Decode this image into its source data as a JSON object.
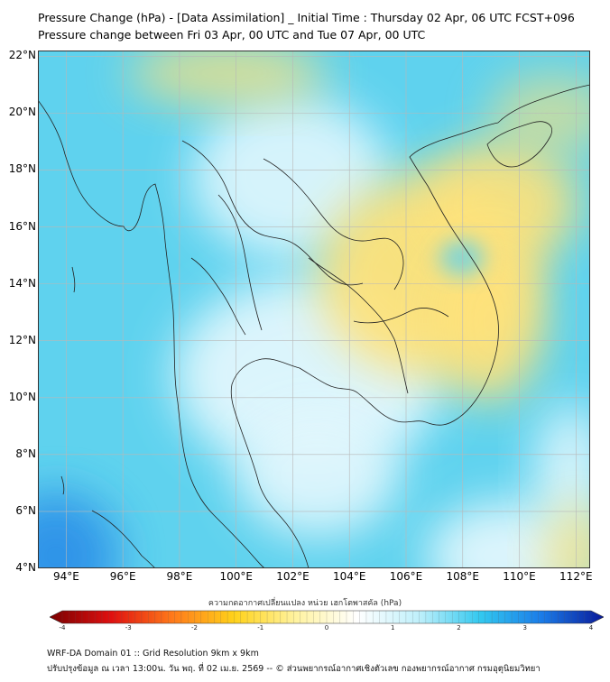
{
  "title_line1": "Pressure Change (hPa) - [Data Assimilation] _ Initial Time : Thursday 02 Apr, 06 UTC FCST+096",
  "title_line2": "Pressure change between Fri 03 Apr, 00 UTC and Tue 07 Apr, 00 UTC",
  "map": {
    "lon_range": [
      93,
      112.5
    ],
    "lat_range": [
      4,
      22.2
    ],
    "lat_ticks": [
      {
        "value": 22,
        "label": "22°N"
      },
      {
        "value": 20,
        "label": "20°N"
      },
      {
        "value": 18,
        "label": "18°N"
      },
      {
        "value": 16,
        "label": "16°N"
      },
      {
        "value": 14,
        "label": "14°N"
      },
      {
        "value": 12,
        "label": "12°N"
      },
      {
        "value": 10,
        "label": "10°N"
      },
      {
        "value": 8,
        "label": "8°N"
      },
      {
        "value": 6,
        "label": "6°N"
      },
      {
        "value": 4,
        "label": "4°N"
      }
    ],
    "lon_ticks": [
      {
        "value": 94,
        "label": "94°E"
      },
      {
        "value": 96,
        "label": "96°E"
      },
      {
        "value": 98,
        "label": "98°E"
      },
      {
        "value": 100,
        "label": "100°E"
      },
      {
        "value": 102,
        "label": "102°E"
      },
      {
        "value": 104,
        "label": "104°E"
      },
      {
        "value": 106,
        "label": "106°E"
      },
      {
        "value": 108,
        "label": "108°E"
      },
      {
        "value": 110,
        "label": "110°E"
      },
      {
        "value": 112,
        "label": "112°E"
      }
    ],
    "grid": true,
    "colors": {
      "background_field": "#5fd2ee",
      "positive_strong": "#2a8ee8",
      "neutral": "#e2f7fd",
      "negative_weak": "#ffe27a",
      "gridline": "#b8b8b8",
      "border": "#222222"
    }
  },
  "colorbar": {
    "title": "ความกดอากาศเปลี่ยนแปลง หน่วย เฮกโตพาสคัล (hPa)",
    "min": -4,
    "max": 4,
    "ticks": [
      {
        "value": -4,
        "label": "-4"
      },
      {
        "value": -3,
        "label": "-3"
      },
      {
        "value": -2,
        "label": "-2"
      },
      {
        "value": -1,
        "label": "-1"
      },
      {
        "value": 0,
        "label": "0"
      },
      {
        "value": 1,
        "label": "1"
      },
      {
        "value": 2,
        "label": "2"
      },
      {
        "value": 3,
        "label": "3"
      },
      {
        "value": 4,
        "label": "4"
      }
    ],
    "stops": [
      "#7a0000",
      "#e01010",
      "#ff7a1a",
      "#ffd21a",
      "#fff3a0",
      "#ffffff",
      "#bff0fb",
      "#32c8ef",
      "#1a7be8",
      "#0a1a9a"
    ]
  },
  "footer_line1": "WRF-DA Domain 01 :: Grid Resolution 9km x 9km",
  "footer_line2": "ปรับปรุงข้อมูล ณ เวลา 13:00น. วัน พฤ. ที่ 02 เม.ย. 2569 -- © ส่วนพยากรณ์อากาศเชิงตัวเลข กองพยากรณ์อากาศ กรมอุตุนิยมวิทยา"
}
